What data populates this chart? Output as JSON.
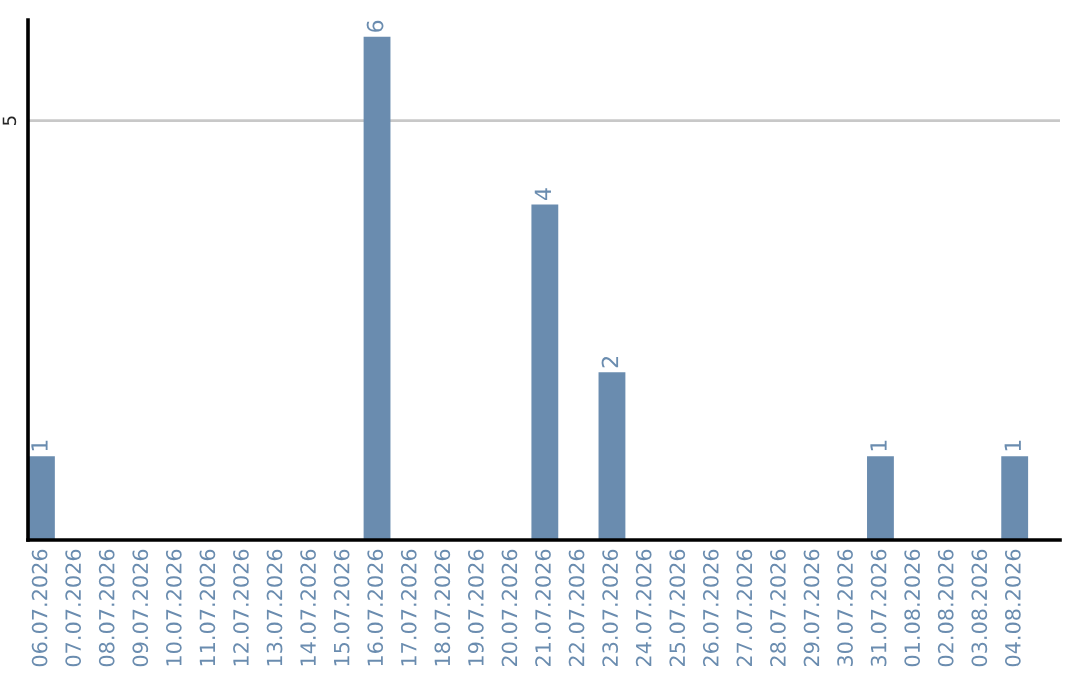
{
  "chart_data": {
    "type": "bar",
    "categories": [
      "06.07.2026",
      "07.07.2026",
      "08.07.2026",
      "09.07.2026",
      "10.07.2026",
      "11.07.2026",
      "12.07.2026",
      "13.07.2026",
      "14.07.2026",
      "15.07.2026",
      "16.07.2026",
      "17.07.2026",
      "18.07.2026",
      "19.07.2026",
      "20.07.2026",
      "21.07.2026",
      "22.07.2026",
      "23.07.2026",
      "24.07.2026",
      "25.07.2026",
      "26.07.2026",
      "27.07.2026",
      "28.07.2026",
      "29.07.2026",
      "30.07.2026",
      "31.07.2026",
      "01.08.2026",
      "02.08.2026",
      "03.08.2026",
      "04.08.2026"
    ],
    "values": [
      1,
      0,
      0,
      0,
      0,
      0,
      0,
      0,
      0,
      0,
      6,
      0,
      0,
      0,
      0,
      4,
      0,
      2,
      0,
      0,
      0,
      0,
      0,
      0,
      0,
      1,
      0,
      0,
      0,
      1
    ],
    "value_labels": [
      "1",
      null,
      null,
      null,
      null,
      null,
      null,
      null,
      null,
      null,
      "6",
      null,
      null,
      null,
      null,
      "4",
      null,
      "2",
      null,
      null,
      null,
      null,
      null,
      null,
      null,
      "1",
      null,
      null,
      null,
      "1"
    ],
    "color": "#6a8caf",
    "ylim": [
      0,
      6.2
    ],
    "yticks": [
      5
    ],
    "grid": "y"
  }
}
